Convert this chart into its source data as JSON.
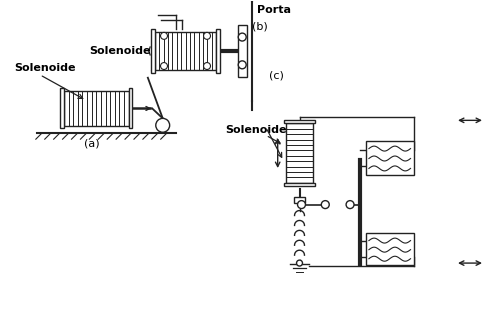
{
  "background_color": "#ffffff",
  "line_color": "#222222",
  "text_color": "#000000",
  "label_a": "(a)",
  "label_b": "(b)",
  "label_c": "(c)",
  "label_solenoide_a": "Solenoide",
  "label_solenoide_b": "Solenoide",
  "label_solenoide_c": "Solenoide",
  "label_porta": "Porta",
  "figsize": [
    4.87,
    3.18
  ],
  "dpi": 100
}
